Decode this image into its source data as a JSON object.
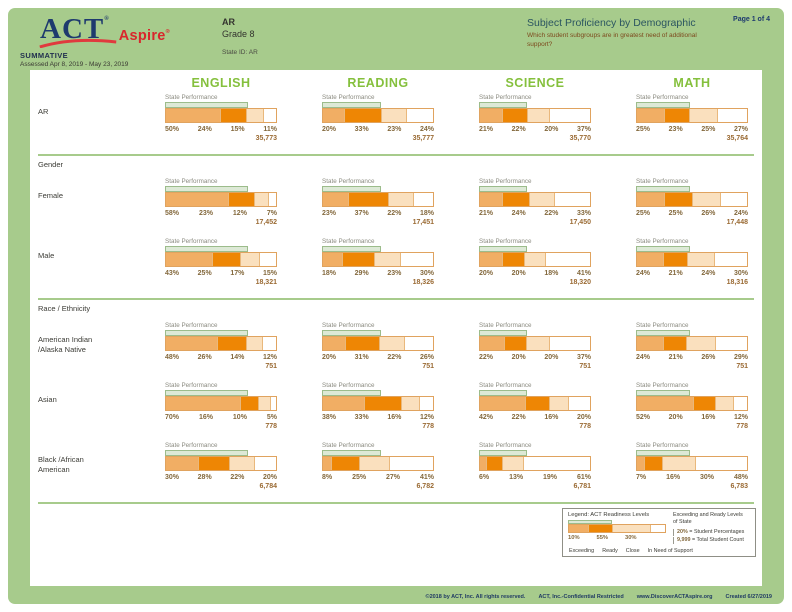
{
  "header": {
    "brand": {
      "act": "ACT",
      "aspire": "Aspire",
      "reg": "®"
    },
    "program": "SUMMATIVE",
    "assessed": "Assessed Apr 8, 2019 - May 23, 2019",
    "org": "AR",
    "grade": "Grade 8",
    "state_id": "State ID: AR",
    "title": "Subject Proficiency by Demographic",
    "question": "Which student subgroups are in greatest need of additional support?",
    "page": "Page 1 of 4"
  },
  "state_performance_label": "State Performance",
  "chart_data": {
    "type": "bar",
    "subtype": "horizontal-stacked",
    "subjects": [
      "ENGLISH",
      "READING",
      "SCIENCE",
      "MATH"
    ],
    "levels": [
      "Exceeding",
      "Ready",
      "Close",
      "In Need of Support"
    ],
    "level_colors": [
      "#F1AE64",
      "#EE8604",
      "#FAE0BE",
      "#FFFFFF"
    ],
    "state_performance_pct": {
      "ENGLISH": 74,
      "READING": 53,
      "SCIENCE": 43,
      "MATH": 48
    },
    "groups": [
      {
        "section": null,
        "label": "AR",
        "lines": [
          "AR"
        ],
        "data": {
          "ENGLISH": {
            "percentages": [
              50,
              24,
              15,
              11
            ],
            "count": "35,773"
          },
          "READING": {
            "percentages": [
              20,
              33,
              23,
              24
            ],
            "count": "35,777"
          },
          "SCIENCE": {
            "percentages": [
              21,
              22,
              20,
              37
            ],
            "count": "35,770"
          },
          "MATH": {
            "percentages": [
              25,
              23,
              25,
              27
            ],
            "count": "35,764"
          }
        }
      },
      {
        "section": "Gender",
        "label": "Female",
        "lines": [
          "Female"
        ],
        "data": {
          "ENGLISH": {
            "percentages": [
              58,
              23,
              12,
              7
            ],
            "count": "17,452"
          },
          "READING": {
            "percentages": [
              23,
              37,
              22,
              18
            ],
            "count": "17,451"
          },
          "SCIENCE": {
            "percentages": [
              21,
              24,
              22,
              33
            ],
            "count": "17,450"
          },
          "MATH": {
            "percentages": [
              25,
              25,
              26,
              24
            ],
            "count": "17,448"
          }
        }
      },
      {
        "section": "Gender",
        "label": "Male",
        "lines": [
          "Male"
        ],
        "data": {
          "ENGLISH": {
            "percentages": [
              43,
              25,
              17,
              15
            ],
            "count": "18,321"
          },
          "READING": {
            "percentages": [
              18,
              29,
              23,
              30
            ],
            "count": "18,326"
          },
          "SCIENCE": {
            "percentages": [
              20,
              20,
              18,
              41
            ],
            "count": "18,320"
          },
          "MATH": {
            "percentages": [
              24,
              21,
              24,
              30
            ],
            "count": "18,316"
          }
        }
      },
      {
        "section": "Race / Ethnicity",
        "label": "American Indian /Alaska Native",
        "lines": [
          "American Indian",
          "/Alaska Native"
        ],
        "data": {
          "ENGLISH": {
            "percentages": [
              48,
              26,
              14,
              12
            ],
            "count": "751"
          },
          "READING": {
            "percentages": [
              20,
              31,
              22,
              26
            ],
            "count": "751"
          },
          "SCIENCE": {
            "percentages": [
              22,
              20,
              20,
              37
            ],
            "count": "751"
          },
          "MATH": {
            "percentages": [
              24,
              21,
              26,
              29
            ],
            "count": "751"
          }
        }
      },
      {
        "section": "Race / Ethnicity",
        "label": "Asian",
        "lines": [
          "Asian"
        ],
        "data": {
          "ENGLISH": {
            "percentages": [
              70,
              16,
              10,
              5
            ],
            "count": "778"
          },
          "READING": {
            "percentages": [
              38,
              33,
              16,
              12
            ],
            "count": "778"
          },
          "SCIENCE": {
            "percentages": [
              42,
              22,
              16,
              20
            ],
            "count": "778"
          },
          "MATH": {
            "percentages": [
              52,
              20,
              16,
              12
            ],
            "count": "778"
          }
        }
      },
      {
        "section": "Race / Ethnicity",
        "label": "Black /African American",
        "lines": [
          "Black /African",
          "American"
        ],
        "data": {
          "ENGLISH": {
            "percentages": [
              30,
              28,
              22,
              20
            ],
            "count": "6,784"
          },
          "READING": {
            "percentages": [
              8,
              25,
              27,
              41
            ],
            "count": "6,782"
          },
          "SCIENCE": {
            "percentages": [
              6,
              13,
              19,
              61
            ],
            "count": "6,781"
          },
          "MATH": {
            "percentages": [
              7,
              16,
              30,
              48
            ],
            "count": "6,783"
          }
        }
      }
    ]
  },
  "legend": {
    "title": "Legend: ACT Readiness Levels",
    "example_pcts": [
      "10%",
      "55%",
      "30%"
    ],
    "segment_widths": [
      20,
      25,
      40,
      15
    ],
    "state_note": "Exceeding and Ready Levels of State",
    "pct_example": "20%",
    "pct_note": "= Student Percentages",
    "count_example": "9,999",
    "count_note": "= Total Student Count"
  },
  "footer": {
    "copyright": "©2018 by ACT, Inc. All rights reserved.",
    "confidential": "ACT, Inc.-Confidential Restricted",
    "url": "www.DiscoverACTAspire.org",
    "created": "Created 6/27/2019"
  },
  "colors": {
    "page_green": "#A7CB8C",
    "subject_green": "#85C03D",
    "exceeding": "#F1AE64",
    "ready": "#EE8604",
    "close": "#FAE0BE",
    "in_need_of_support": "#FFFFFF",
    "bar_border": "#E0A35F",
    "state_bar_fill": "#DDE9D6",
    "state_bar_border": "#9CBC8B",
    "percent_text": "#83683C",
    "act_navy": "#1E3A6E",
    "aspire_red": "#D9262C",
    "title_teal": "#2B5560",
    "question_brown": "#7D4A1E"
  }
}
